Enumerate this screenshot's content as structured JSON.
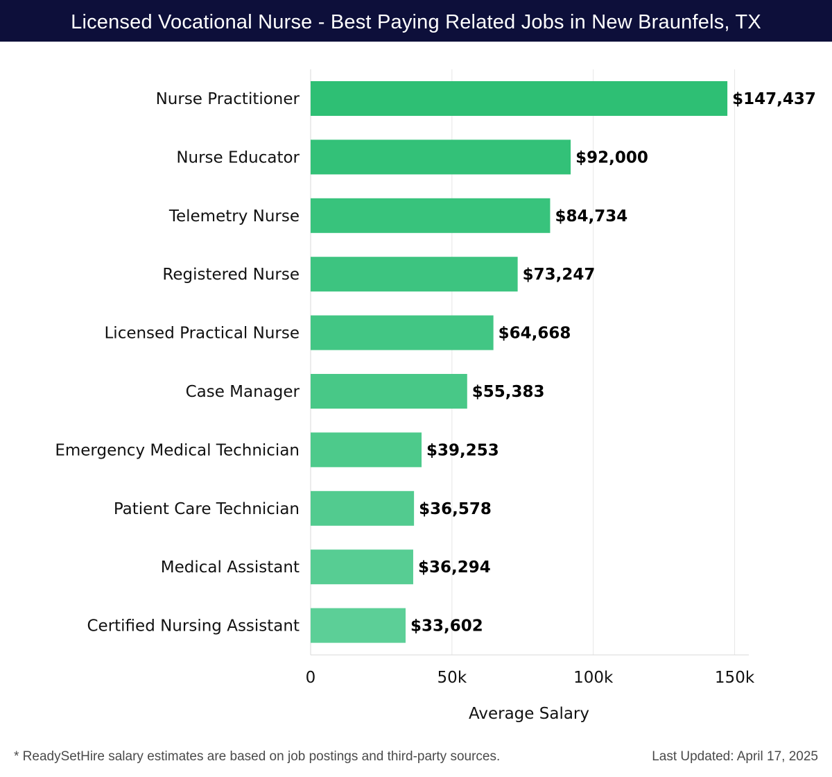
{
  "header": {
    "title": "Licensed Vocational Nurse - Best Paying Related Jobs in New Braunfels, TX"
  },
  "chart_data": {
    "type": "bar",
    "orientation": "horizontal",
    "title": "Licensed Vocational Nurse - Best Paying Related Jobs in New Braunfels, TX",
    "xlabel": "Average Salary",
    "ylabel": "",
    "xlim": [
      0,
      155000
    ],
    "xticks": [
      0,
      50000,
      100000,
      150000
    ],
    "xtick_labels": [
      "0",
      "50k",
      "100k",
      "150k"
    ],
    "grid": true,
    "categories": [
      "Nurse Practitioner",
      "Nurse Educator",
      "Telemetry Nurse",
      "Registered Nurse",
      "Licensed Practical Nurse",
      "Case Manager",
      "Emergency Medical Technician",
      "Patient Care Technician",
      "Medical Assistant",
      "Certified Nursing Assistant"
    ],
    "values": [
      147437,
      92000,
      84734,
      73247,
      64668,
      55383,
      39253,
      36578,
      36294,
      33602
    ],
    "value_labels": [
      "$147,437",
      "$92,000",
      "$84,734",
      "$73,247",
      "$64,668",
      "$55,383",
      "$39,253",
      "$36,578",
      "$36,294",
      "$33,602"
    ],
    "bar_color_top": "#2ebf74",
    "bar_color_bottom": "#5ccf97"
  },
  "footer": {
    "note": "* ReadySetHire salary estimates are based on job postings and third-party sources.",
    "last_updated": "Last Updated: April 17, 2025"
  }
}
